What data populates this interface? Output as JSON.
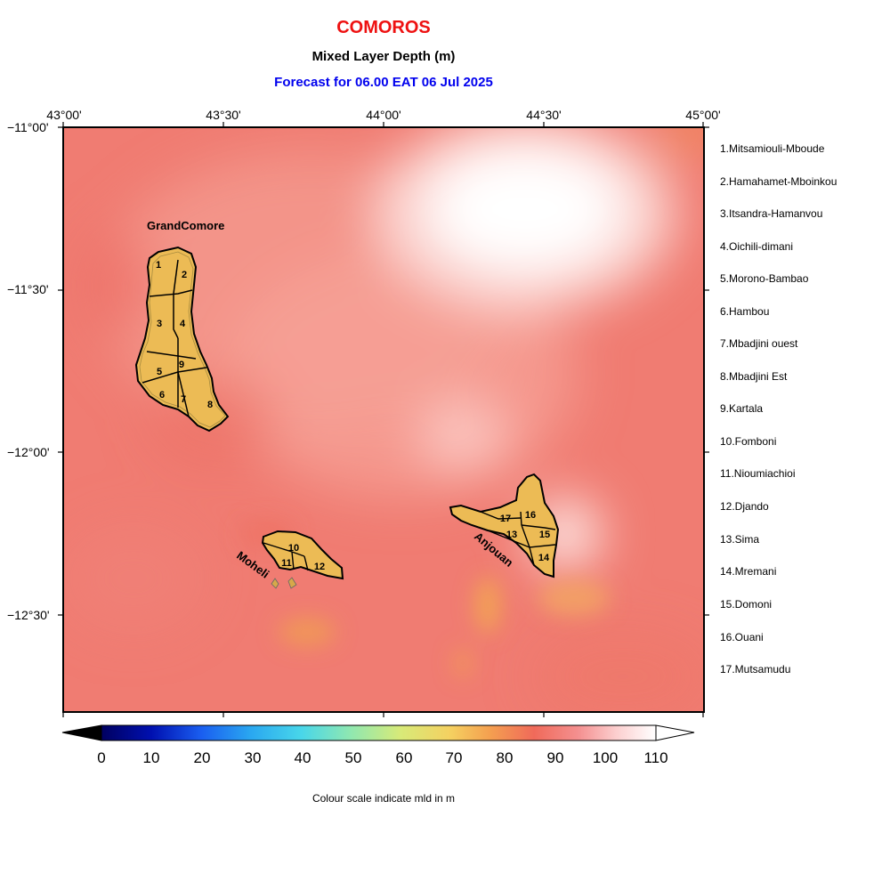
{
  "header": {
    "country": "COMOROS",
    "variable": "Mixed Layer Depth (m)",
    "forecast": "Forecast for  06.00 EAT 06 Jul 2025"
  },
  "colors": {
    "title": "#ee1111",
    "forecast": "#0000ee",
    "island_fill": "#ecbb55",
    "field_base": "#f07c72"
  },
  "axes": {
    "longitude_labels": [
      "43°00'",
      "43°30'",
      "44°00'",
      "44°30'",
      "45°00'"
    ],
    "latitude_labels": [
      "−11°00'",
      "−11°30'",
      "−12°00'",
      "−12°30'"
    ]
  },
  "islands": {
    "grand_comore": "GrandComore",
    "moheli": "Moheli",
    "anjouan": "Anjouan"
  },
  "region_numbers": [
    "1",
    "2",
    "3",
    "4",
    "5",
    "6",
    "7",
    "8",
    "9",
    "10",
    "11",
    "12",
    "13",
    "14",
    "15",
    "16",
    "17"
  ],
  "legend": [
    "1.Mitsamiouli-Mboude",
    "2.Hamahamet-Mboinkou",
    "3.Itsandra-Hamanvou",
    "4.Oichili-dimani",
    "5.Morono-Bambao",
    "6.Hambou",
    "7.Mbadjini ouest",
    "8.Mbadjini Est",
    "9.Kartala",
    "10.Fomboni",
    "11.Nioumiachioi",
    "12.Djando",
    "13.Sima",
    "14.Mremani",
    "15.Domoni",
    "16.Ouani",
    "17.Mutsamudu"
  ],
  "colorbar": {
    "ticks": [
      "0",
      "10",
      "20",
      "30",
      "40",
      "50",
      "60",
      "70",
      "80",
      "90",
      "100",
      "110"
    ],
    "caption": "Colour scale indicate mld in m"
  }
}
